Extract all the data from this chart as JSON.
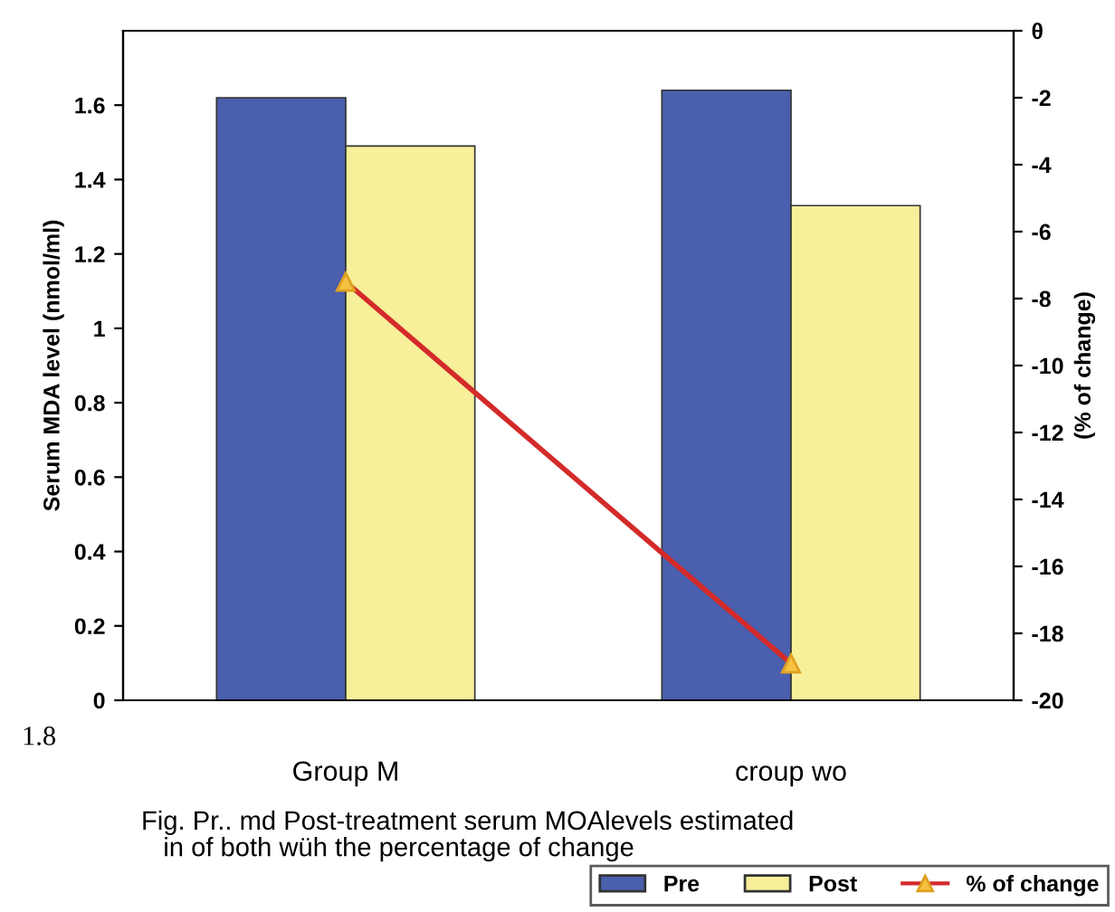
{
  "chart_data": {
    "type": "bar",
    "ylabel": "Serum MDA level (nmol/ml)",
    "y2label": "(% of change)",
    "categories": [
      "Group M",
      "croup wo"
    ],
    "series": [
      {
        "name": "Pre",
        "color": "#4a5fad",
        "values": [
          1.62,
          1.64
        ]
      },
      {
        "name": "Post",
        "color": "#f7ef9a",
        "values": [
          1.49,
          1.33
        ]
      },
      {
        "name": "% of change",
        "type": "line",
        "axis": "y2",
        "color": "#d42a2a",
        "marker": "triangle",
        "values": [
          -7.5,
          -18.9
        ]
      }
    ],
    "ylim": [
      0,
      1.8
    ],
    "yticks": [
      0,
      0.2,
      0.4,
      0.6,
      0.8,
      1,
      1.2,
      1.4,
      1.6
    ],
    "y2lim": [
      -20,
      0
    ],
    "y2ticks": [
      -20,
      -18,
      -16,
      -14,
      -12,
      -10,
      -8,
      -6,
      -4,
      -2,
      {
        "value": 0,
        "label": "θ"
      }
    ],
    "annotations": [
      "1.8",
      "Fig. Pr.. md Post-treatment serum MOAlevels estimated\n   in of both wüh the percentage of change"
    ],
    "legend": "bottom right",
    "grid": false
  }
}
